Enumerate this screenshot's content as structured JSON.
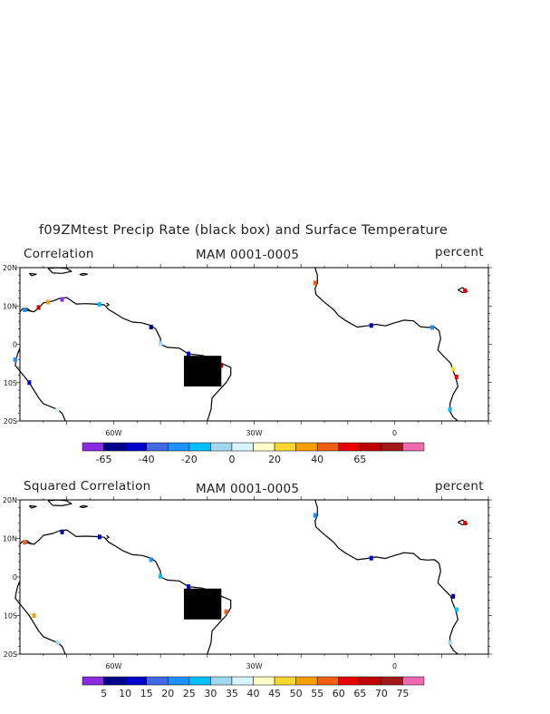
{
  "main_title": "f09ZMtest Precip Rate (black box) and Surface Temperature",
  "panels": [
    {
      "left_title": "Correlation",
      "center_title": "MAM 0001-0005",
      "right_title": "percent",
      "lat_labels": [
        "20N",
        "10N",
        "0",
        "10S",
        "20S"
      ],
      "lon_labels": [
        "60W",
        "30W",
        "0"
      ],
      "colorbar": {
        "colors": [
          "#8a2be2",
          "#00008b",
          "#0000cd",
          "#4169e1",
          "#1e90ff",
          "#00bfff",
          "#a0d8f0",
          "#d8f4fc",
          "#ffffc8",
          "#f8d830",
          "#f5a000",
          "#f06010",
          "#e80000",
          "#c00000",
          "#a01818",
          "#f06ab0"
        ],
        "labels": [
          "-65",
          "-40",
          "-20",
          "0",
          "20",
          "40",
          "65"
        ],
        "label_after_boundary": [
          1,
          3,
          5,
          7,
          9,
          11,
          13
        ]
      }
    },
    {
      "left_title": "Squared Correlation",
      "center_title": "MAM 0001-0005",
      "right_title": "percent",
      "lat_labels": [
        "20N",
        "10N",
        "0",
        "10S",
        "20S"
      ],
      "lon_labels": [
        "60W",
        "30W",
        "0"
      ],
      "colorbar": {
        "colors": [
          "#8a2be2",
          "#00008b",
          "#0000cd",
          "#4169e1",
          "#1e90ff",
          "#00bfff",
          "#a0d8f0",
          "#d8f4fc",
          "#ffffc8",
          "#f8d830",
          "#f5a000",
          "#f06010",
          "#e80000",
          "#c00000",
          "#a01818",
          "#f06ab0"
        ],
        "labels": [
          "5",
          "10",
          "15",
          "20",
          "25",
          "30",
          "35",
          "40",
          "45",
          "50",
          "55",
          "60",
          "65",
          "70",
          "75"
        ],
        "label_after_boundary": [
          1,
          2,
          3,
          4,
          5,
          6,
          7,
          8,
          9,
          10,
          11,
          12,
          13,
          14,
          15
        ]
      }
    }
  ],
  "map_extent": {
    "lon_min": -80,
    "lon_max": 20,
    "lat_min": -20,
    "lat_max": 20
  },
  "black_box": {
    "lon_min": -45,
    "lon_max": -37,
    "lat_min": -11,
    "lat_max": -3
  }
}
